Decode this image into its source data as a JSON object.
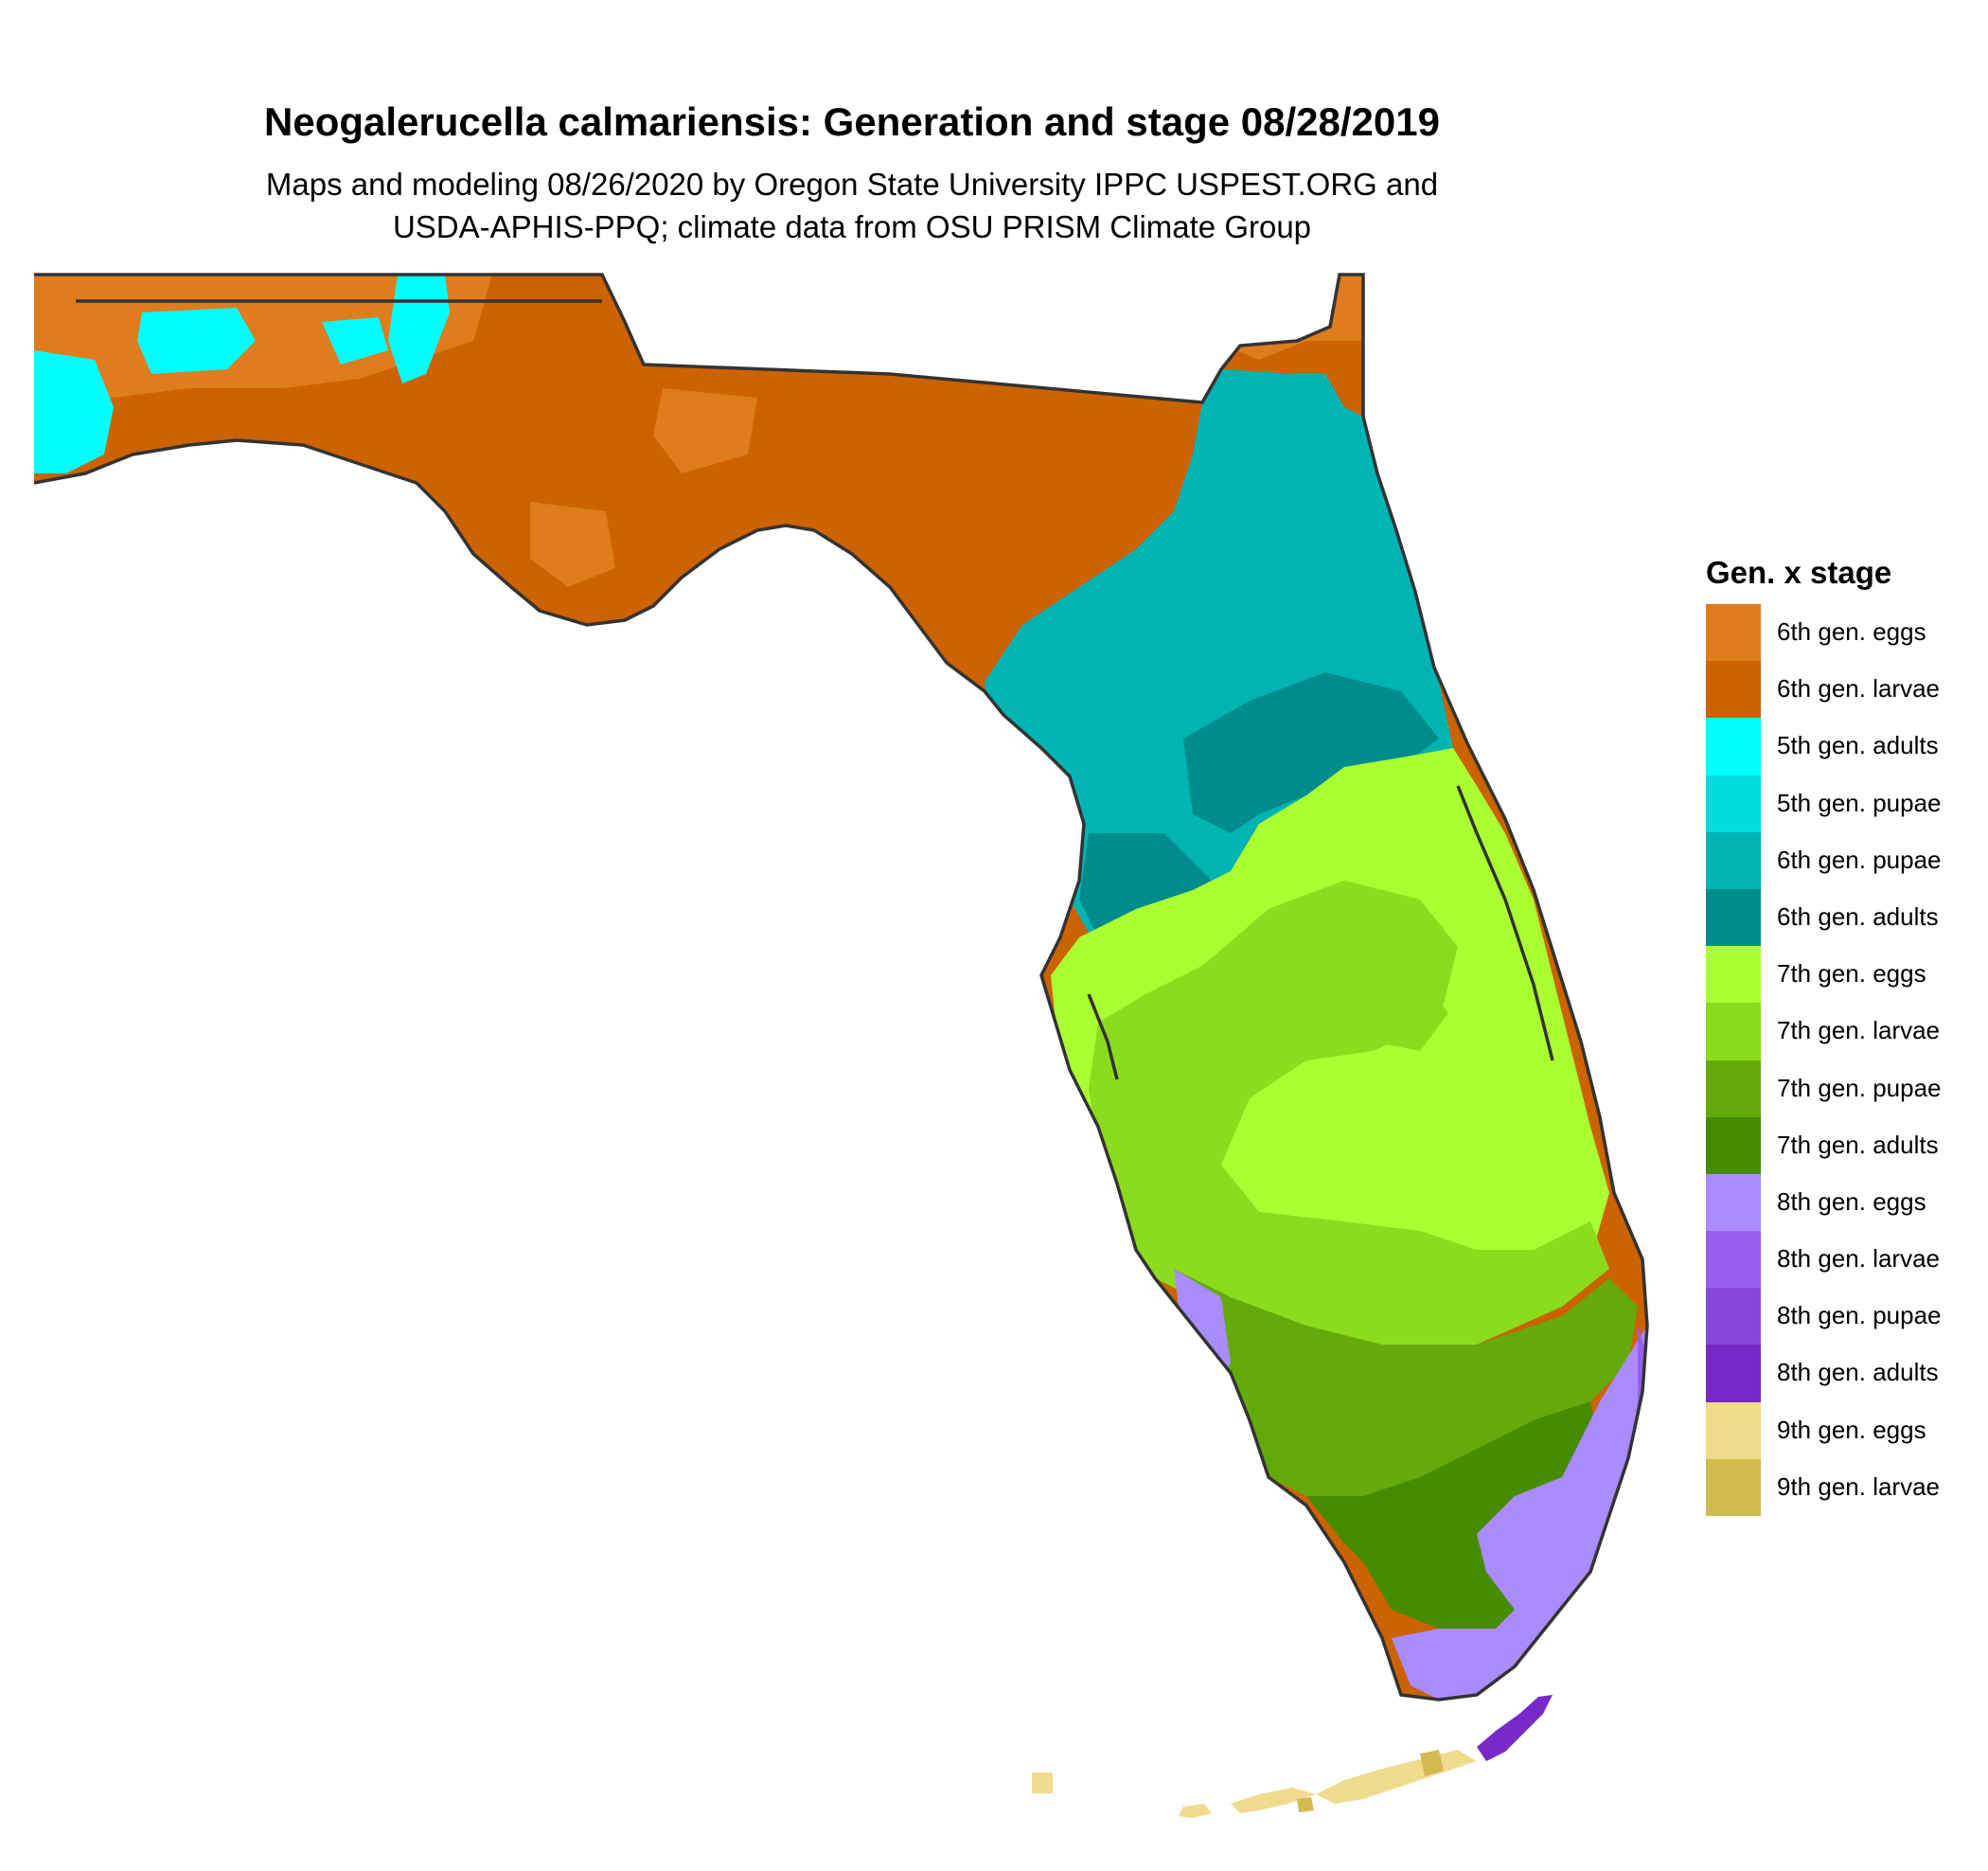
{
  "title": "Neogalerucella calmariensis: Generation and stage 08/28/2019",
  "subtitle_line1": "Maps and modeling 08/26/2020 by Oregon State University IPPC USPEST.ORG and",
  "subtitle_line2": "USDA-APHIS-PPQ; climate data from OSU PRISM Climate Group",
  "legend": {
    "title": "Gen. x stage",
    "items": [
      {
        "label": "6th gen. eggs",
        "color": "#DE7C1E"
      },
      {
        "label": "6th gen. larvae",
        "color": "#CC6200"
      },
      {
        "label": "5th gen. adults",
        "color": "#00FFFF"
      },
      {
        "label": "5th gen. pupae",
        "color": "#00DCDC"
      },
      {
        "label": "6th gen. pupae",
        "color": "#00B4B4"
      },
      {
        "label": "6th gen. adults",
        "color": "#008C8C"
      },
      {
        "label": "7th gen. eggs",
        "color": "#AAFF32"
      },
      {
        "label": "7th gen. larvae",
        "color": "#8CDC1E"
      },
      {
        "label": "7th gen. pupae",
        "color": "#64AA0A"
      },
      {
        "label": "7th gen. adults",
        "color": "#468C00"
      },
      {
        "label": "8th gen. eggs",
        "color": "#AA8CFF"
      },
      {
        "label": "8th gen. larvae",
        "color": "#9A5FF0"
      },
      {
        "label": "8th gen. pupae",
        "color": "#8A46DC"
      },
      {
        "label": "8th gen. adults",
        "color": "#7828C8"
      },
      {
        "label": "9th gen. eggs",
        "color": "#F0DC8C"
      },
      {
        "label": "9th gen. larvae",
        "color": "#D2B950"
      }
    ]
  }
}
